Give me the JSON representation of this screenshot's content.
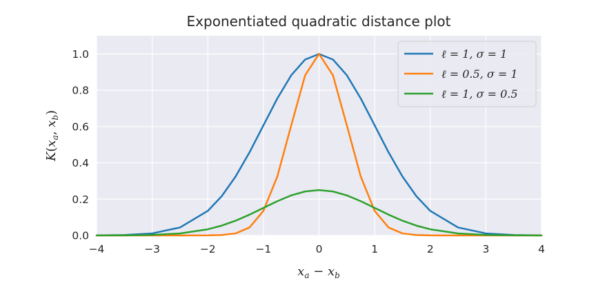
{
  "chart_data": {
    "type": "line",
    "title": "Exponentiated quadratic distance plot",
    "xlabel": "x_a − x_b",
    "ylabel": "K(x_a, x_b)",
    "xlim": [
      -4,
      4
    ],
    "ylim": [
      0,
      1.1
    ],
    "x_ticks": [
      -4,
      -3,
      -2,
      -1,
      0,
      1,
      2,
      3,
      4
    ],
    "x_tick_labels": [
      "−4",
      "−3",
      "−2",
      "−1",
      "0",
      "1",
      "2",
      "3",
      "4"
    ],
    "y_ticks": [
      0,
      0.2,
      0.4,
      0.6,
      0.8,
      1.0
    ],
    "y_tick_labels": [
      "0.0",
      "0.2",
      "0.4",
      "0.6",
      "0.8",
      "1.0"
    ],
    "grid": true,
    "legend_position": "top-right",
    "background": "#eaeaf2",
    "x": [
      -4,
      -3.5,
      -3,
      -2.5,
      -2,
      -1.75,
      -1.5,
      -1.25,
      -1,
      -0.75,
      -0.5,
      -0.25,
      0,
      0.25,
      0.5,
      0.75,
      1,
      1.25,
      1.5,
      1.75,
      2,
      2.5,
      3,
      3.5,
      4
    ],
    "series": [
      {
        "name": "ℓ = 1, σ = 1",
        "color": "#1f77b4",
        "values": [
          0.0003,
          0.0022,
          0.0111,
          0.0439,
          0.1353,
          0.2163,
          0.3247,
          0.4578,
          0.6065,
          0.7548,
          0.8825,
          0.9692,
          1.0,
          0.9692,
          0.8825,
          0.7548,
          0.6065,
          0.4578,
          0.3247,
          0.2163,
          0.1353,
          0.0439,
          0.0111,
          0.0022,
          0.0003
        ]
      },
      {
        "name": "ℓ = 0.5, σ = 1",
        "color": "#ff7f0e",
        "values": [
          0.0,
          0.0,
          0.0,
          0.0,
          0.0003,
          0.0022,
          0.0111,
          0.0439,
          0.1353,
          0.3247,
          0.6065,
          0.8825,
          1.0,
          0.8825,
          0.6065,
          0.3247,
          0.1353,
          0.0439,
          0.0111,
          0.0022,
          0.0003,
          0.0,
          0.0,
          0.0,
          0.0
        ]
      },
      {
        "name": "ℓ = 1, σ = 0.5",
        "color": "#2ca02c",
        "values": [
          0.0001,
          0.0005,
          0.0028,
          0.011,
          0.0338,
          0.0541,
          0.0812,
          0.1145,
          0.1516,
          0.1887,
          0.2206,
          0.2423,
          0.25,
          0.2423,
          0.2206,
          0.1887,
          0.1516,
          0.1145,
          0.0812,
          0.0541,
          0.0338,
          0.011,
          0.0028,
          0.0005,
          0.0001
        ]
      }
    ]
  }
}
